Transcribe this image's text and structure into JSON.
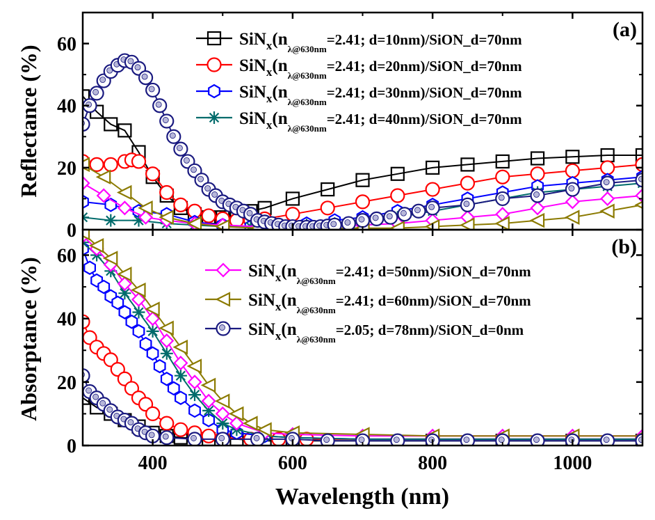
{
  "chart_data": [
    {
      "panel_label": "(a)",
      "type": "line",
      "ylabel": "Reflectance (%)",
      "xlim": [
        300,
        1100
      ],
      "ylim": [
        0,
        70
      ],
      "yticks": [
        0,
        20,
        40,
        60
      ],
      "grid": false,
      "legend_position": "top-right",
      "series": [
        {
          "name": "SiNx(nλ@630nm=2.41; d=10nm)/SiON_d=70nm",
          "marker": "square",
          "color": "#000000",
          "x": [
            300,
            320,
            340,
            360,
            380,
            400,
            420,
            440,
            460,
            480,
            500,
            520,
            540,
            560,
            600,
            650,
            700,
            750,
            800,
            850,
            900,
            950,
            1000,
            1050,
            1100
          ],
          "y": [
            43,
            38,
            34,
            32,
            25,
            17,
            11,
            7,
            5,
            4,
            4,
            4.5,
            6,
            7,
            10,
            13,
            16,
            18,
            20,
            21,
            22,
            23,
            23.5,
            24,
            24
          ]
        },
        {
          "name": "SiNx(nλ@630nm=2.41; d=20nm)/SiON_d=70nm",
          "marker": "circle",
          "color": "#ff0000",
          "x": [
            300,
            320,
            340,
            360,
            370,
            380,
            400,
            420,
            440,
            460,
            480,
            500,
            520,
            540,
            560,
            600,
            650,
            700,
            750,
            800,
            850,
            900,
            950,
            1000,
            1050,
            1100
          ],
          "y": [
            22,
            21,
            21,
            22,
            22.5,
            22,
            18,
            12,
            8,
            6,
            4.5,
            3.5,
            3,
            3,
            3.5,
            5,
            7,
            9,
            11,
            13,
            15,
            17,
            18,
            19,
            20,
            21
          ]
        },
        {
          "name": "SiNx(nλ@630nm=2.41; d=30nm)/SiON_d=70nm",
          "marker": "hexagon",
          "color": "#0000ff",
          "x": [
            300,
            340,
            380,
            420,
            460,
            500,
            540,
            580,
            620,
            660,
            700,
            750,
            800,
            850,
            900,
            950,
            1000,
            1050,
            1100
          ],
          "y": [
            9,
            8,
            6,
            5,
            2.5,
            1.5,
            1,
            1.5,
            2,
            3,
            4,
            6,
            8,
            10,
            12,
            14,
            15,
            16,
            17
          ]
        },
        {
          "name": "SiNx(nλ@630nm=2.41; d=40nm)/SiON_d=70nm",
          "marker": "asterisk",
          "color": "#006b6b",
          "x": [
            300,
            340,
            380,
            420,
            460,
            500,
            540,
            580,
            620,
            660,
            700,
            750,
            800,
            850,
            900,
            950,
            1000,
            1050,
            1100
          ],
          "y": [
            4,
            3,
            3,
            2,
            1.5,
            1,
            1,
            1,
            1.5,
            2,
            3,
            4,
            6,
            8,
            10,
            12,
            13,
            14,
            15
          ]
        },
        {
          "name": "SiNx(nλ@630nm=2.41; d=50nm)/SiON_d=70nm",
          "marker": "diamond",
          "color": "#ff00ff",
          "x": [
            300,
            330,
            360,
            390,
            420,
            460,
            500,
            550,
            600,
            650,
            700,
            750,
            800,
            850,
            900,
            950,
            1000,
            1050,
            1100
          ],
          "y": [
            15,
            11,
            7,
            4,
            3,
            2,
            1.5,
            1,
            1,
            1,
            1.5,
            2,
            3,
            4,
            5,
            7,
            9,
            10,
            11
          ]
        },
        {
          "name": "SiNx(nλ@630nm=2.41; d=60nm)/SiON_d=70nm",
          "marker": "triangle-left",
          "color": "#8b7a00",
          "x": [
            300,
            330,
            360,
            390,
            420,
            460,
            500,
            550,
            600,
            650,
            700,
            750,
            800,
            850,
            900,
            950,
            1000,
            1050,
            1100
          ],
          "y": [
            21,
            17,
            12,
            7,
            4,
            2,
            1,
            0.5,
            0.5,
            0.5,
            0.5,
            0.5,
            1,
            1.5,
            2,
            3,
            4,
            6,
            8
          ]
        },
        {
          "name": "SiNx(nλ@630nm=2.05; d=78nm)/SiON_d=0nm",
          "marker": "circle-ball",
          "color": "#1a1a80",
          "x": [
            300,
            310,
            320,
            330,
            340,
            350,
            360,
            370,
            380,
            390,
            400,
            410,
            420,
            430,
            440,
            450,
            460,
            470,
            480,
            490,
            500,
            510,
            520,
            530,
            540,
            550,
            560,
            570,
            580,
            590,
            600,
            610,
            620,
            630,
            640,
            650,
            660,
            680,
            700,
            720,
            740,
            760,
            780,
            800,
            850,
            900,
            950,
            1000,
            1050,
            1100
          ],
          "y": [
            34,
            40,
            44,
            48,
            51,
            53,
            54.5,
            54,
            52,
            49,
            45,
            40,
            35,
            30,
            26,
            22,
            19,
            16,
            13,
            11,
            9,
            8,
            7,
            6,
            5,
            3,
            2.5,
            2,
            1.5,
            1,
            1,
            0.8,
            0.8,
            0.8,
            1,
            1.2,
            1.5,
            2,
            3,
            3.5,
            4,
            5,
            6,
            7,
            8,
            10,
            11,
            13,
            15,
            16
          ]
        }
      ]
    },
    {
      "panel_label": "(b)",
      "type": "line",
      "xlabel": "Wavelength (nm)",
      "ylabel": "Absorptance (%)",
      "xlim": [
        300,
        1100
      ],
      "ylim": [
        0,
        68
      ],
      "yticks": [
        0,
        20,
        40,
        60
      ],
      "xticks": [
        400,
        600,
        800,
        1000
      ],
      "grid": false,
      "legend_position": "top-right",
      "series": [
        {
          "name": "SiNx(nλ@630nm=2.41; d=10nm)/SiON_d=70nm",
          "marker": "square",
          "color": "#000000",
          "x": [
            300,
            320,
            340,
            360,
            380,
            400,
            420,
            440,
            480,
            520,
            560,
            600,
            700,
            800,
            900,
            1000,
            1100
          ],
          "y": [
            15,
            12,
            10,
            8,
            6,
            4,
            3,
            2.5,
            2,
            2,
            1.5,
            1.5,
            1.5,
            1.5,
            1.5,
            1.5,
            1.5
          ]
        },
        {
          "name": "SiNx(nλ@630nm=2.41; d=20nm)/SiON_d=70nm",
          "marker": "circle",
          "color": "#ff0000",
          "x": [
            300,
            310,
            320,
            330,
            340,
            350,
            360,
            370,
            380,
            390,
            400,
            420,
            440,
            460,
            480,
            500,
            540,
            580,
            620,
            700,
            800,
            900,
            1000,
            1100
          ],
          "y": [
            39,
            34,
            31,
            29,
            27,
            24,
            21,
            18,
            15,
            13,
            10,
            7,
            5,
            4,
            3,
            2.5,
            2,
            2,
            2,
            2,
            2,
            2,
            2,
            2
          ]
        },
        {
          "name": "SiNx(nλ@630nm=2.41; d=30nm)/SiON_d=70nm",
          "marker": "hexagon",
          "color": "#0000ff",
          "x": [
            300,
            310,
            320,
            330,
            340,
            350,
            360,
            370,
            380,
            390,
            400,
            410,
            420,
            430,
            440,
            460,
            480,
            500,
            520,
            560,
            600,
            700,
            800,
            900,
            1000,
            1100
          ],
          "y": [
            62,
            56,
            52,
            50,
            47,
            45,
            42,
            39,
            36,
            32,
            29,
            25,
            21,
            18,
            15,
            11,
            8,
            5,
            4,
            3,
            2.5,
            2,
            2,
            2,
            2,
            2
          ]
        },
        {
          "name": "SiNx(nλ@630nm=2.41; d=40nm)/SiON_d=70nm",
          "marker": "asterisk",
          "color": "#006b6b",
          "x": [
            300,
            320,
            340,
            360,
            380,
            400,
            420,
            440,
            460,
            480,
            500,
            520,
            560,
            600,
            700,
            800,
            900,
            1000,
            1100
          ],
          "y": [
            64,
            60,
            55,
            48,
            42,
            36,
            29,
            22,
            16,
            11,
            7,
            5,
            3,
            2.5,
            2,
            2,
            2,
            2,
            2
          ]
        },
        {
          "name": "SiNx(nλ@630nm=2.41; d=50nm)/SiON_d=70nm",
          "marker": "diamond",
          "color": "#ff00ff",
          "x": [
            300,
            320,
            340,
            360,
            380,
            400,
            420,
            440,
            460,
            480,
            500,
            520,
            560,
            600,
            700,
            800,
            900,
            1000,
            1100
          ],
          "y": [
            66,
            62,
            57,
            51,
            46,
            40,
            33,
            26,
            20,
            14,
            10,
            7,
            4,
            3.5,
            3,
            3,
            3,
            3,
            3
          ]
        },
        {
          "name": "SiNx(nλ@630nm=2.41; d=60nm)/SiON_d=70nm",
          "marker": "triangle-left",
          "color": "#8b7a00",
          "x": [
            300,
            320,
            340,
            360,
            380,
            400,
            420,
            440,
            460,
            480,
            500,
            520,
            540,
            560,
            600,
            700,
            800,
            900,
            1000,
            1100
          ],
          "y": [
            67,
            63,
            59,
            54,
            49,
            43,
            37,
            31,
            25,
            19,
            14,
            10,
            7,
            5,
            4,
            3.5,
            3,
            3,
            3,
            3
          ]
        },
        {
          "name": "SiNx(nλ@630nm=2.05; d=78nm)/SiON_d=0nm",
          "marker": "circle-ball",
          "color": "#1a1a80",
          "x": [
            300,
            310,
            320,
            330,
            340,
            350,
            360,
            370,
            380,
            390,
            400,
            420,
            460,
            500,
            550,
            600,
            650,
            700,
            750,
            800,
            850,
            900,
            950,
            1000,
            1050,
            1100
          ],
          "y": [
            22,
            17,
            15,
            13,
            11,
            9,
            8,
            7,
            5,
            4,
            3,
            2.5,
            2,
            2,
            2,
            2,
            1.5,
            1.5,
            1.5,
            1.5,
            1.5,
            1.5,
            1.5,
            1.5,
            1.5,
            1.5
          ]
        }
      ]
    }
  ],
  "legend_a": [
    {
      "series": 0,
      "main": "SiN",
      "sub": "x",
      "paren": "(n",
      "subsub": "λ@630nm",
      "rest": "=2.41; d=10nm)/SiON_d=70nm"
    },
    {
      "series": 1,
      "main": "SiN",
      "sub": "x",
      "paren": "(n",
      "subsub": "λ@630nm",
      "rest": "=2.41; d=20nm)/SiON_d=70nm"
    },
    {
      "series": 2,
      "main": "SiN",
      "sub": "x",
      "paren": "(n",
      "subsub": "λ@630nm",
      "rest": "=2.41; d=30nm)/SiON_d=70nm"
    },
    {
      "series": 3,
      "main": "SiN",
      "sub": "x",
      "paren": "(n",
      "subsub": "λ@630nm",
      "rest": "=2.41; d=40nm)/SiON_d=70nm"
    }
  ],
  "legend_b": [
    {
      "series": 4,
      "main": "SiN",
      "sub": "x",
      "paren": "(n",
      "subsub": "λ@630nm",
      "rest": "=2.41; d=50nm)/SiON_d=70nm"
    },
    {
      "series": 5,
      "main": "SiN",
      "sub": "x",
      "paren": "(n",
      "subsub": "λ@630nm",
      "rest": "=2.41; d=60nm)/SiON_d=70nm"
    },
    {
      "series": 6,
      "main": "SiN",
      "sub": "x",
      "paren": "(n",
      "subsub": "λ@630nm",
      "rest": "=2.05; d=78nm)/SiON_d=0nm"
    }
  ]
}
